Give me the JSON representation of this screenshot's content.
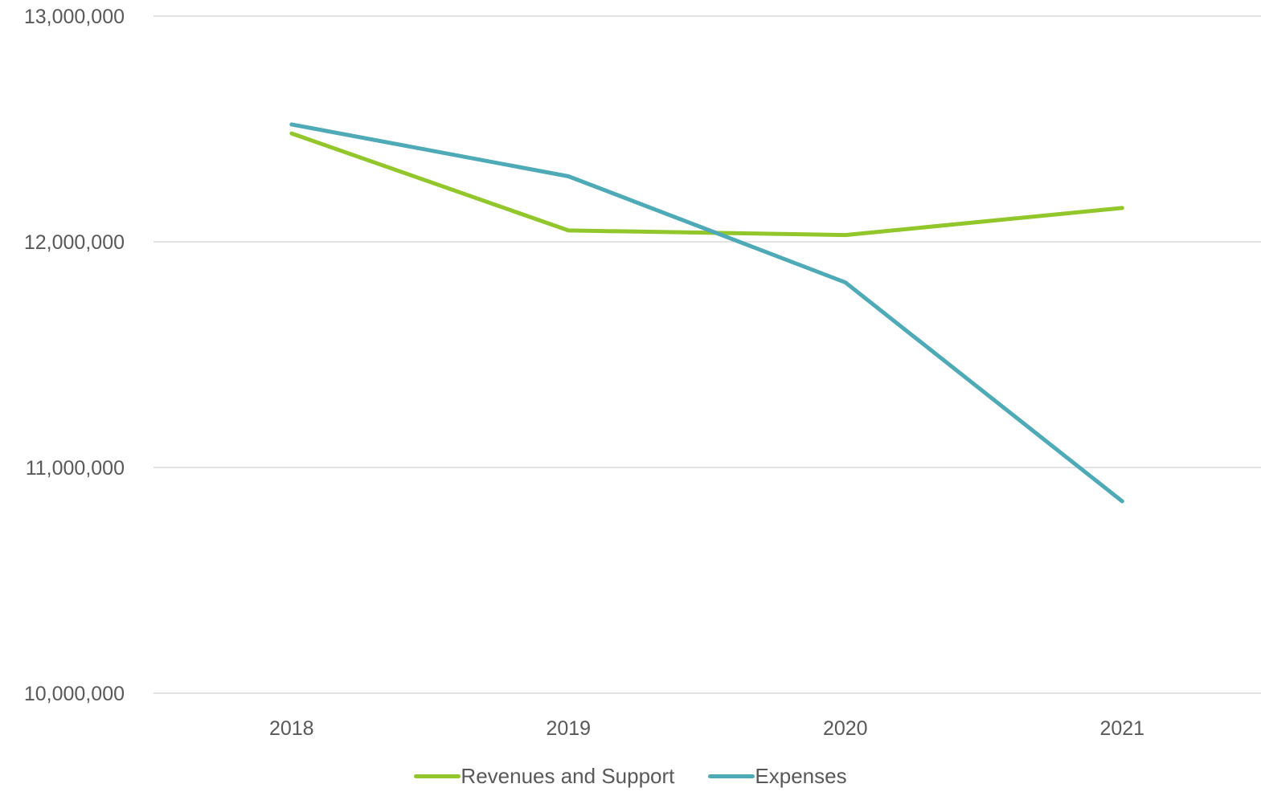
{
  "chart_data": {
    "type": "line",
    "title": "",
    "xlabel": "",
    "ylabel": "",
    "categories": [
      "2018",
      "2019",
      "2020",
      "2021"
    ],
    "ylim": [
      10000000,
      13000000
    ],
    "yticks": [
      10000000,
      11000000,
      12000000,
      13000000
    ],
    "ytick_labels": [
      "10,000,000",
      "11,000,000",
      "12,000,000",
      "13,000,000"
    ],
    "grid": true,
    "legend_position": "bottom",
    "series": [
      {
        "name": "Revenues and Support",
        "color": "#92c72b",
        "values": [
          12480000,
          12050000,
          12030000,
          12150000
        ]
      },
      {
        "name": "Expenses",
        "color": "#4eaab6",
        "values": [
          12520000,
          12290000,
          11820000,
          10850000
        ]
      }
    ]
  }
}
